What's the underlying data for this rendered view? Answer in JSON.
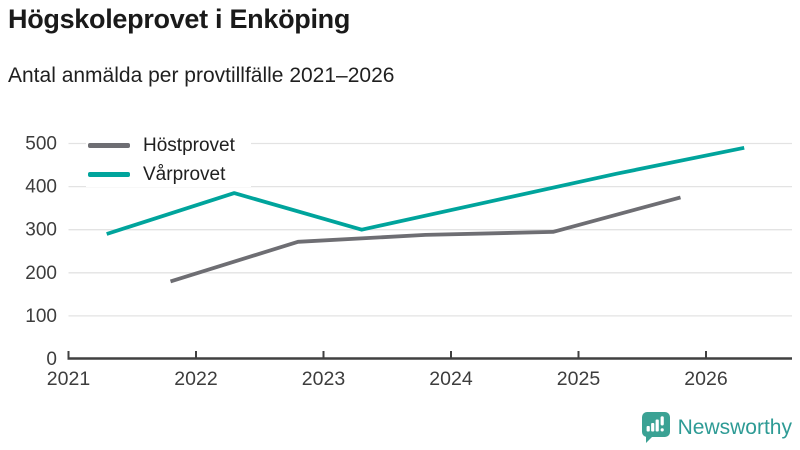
{
  "header": {
    "title": "Högskoleprovet i Enköping",
    "subtitle": "Antal anmälda per provtillfälle 2021–2026"
  },
  "chart_data": {
    "type": "line",
    "title": "Högskoleprovet i Enköping",
    "subtitle": "Antal anmälda per provtillfälle 2021–2026",
    "xlabel": "",
    "ylabel": "",
    "x_ticks": [
      2021,
      2022,
      2023,
      2024,
      2025,
      2026
    ],
    "y_ticks": [
      0,
      100,
      200,
      300,
      400,
      500
    ],
    "xlim": [
      2021,
      2026.67
    ],
    "ylim": [
      0,
      500
    ],
    "grid": true,
    "legend_position": "top-left",
    "series": [
      {
        "name": "Höstprovet",
        "color": "#6e6e73",
        "points": [
          {
            "x": 2021.8,
            "y": 180
          },
          {
            "x": 2022.8,
            "y": 272
          },
          {
            "x": 2023.8,
            "y": 288
          },
          {
            "x": 2024.8,
            "y": 295
          },
          {
            "x": 2025.8,
            "y": 375
          }
        ]
      },
      {
        "name": "Vårprovet",
        "color": "#00a49c",
        "points": [
          {
            "x": 2021.3,
            "y": 290
          },
          {
            "x": 2022.3,
            "y": 385
          },
          {
            "x": 2023.3,
            "y": 300
          },
          {
            "x": 2024.3,
            "y": 365
          },
          {
            "x": 2025.3,
            "y": 430
          },
          {
            "x": 2026.3,
            "y": 490
          }
        ]
      }
    ],
    "axis_color": "#3d3d3d",
    "gridline_color": "#e3e3e3"
  },
  "footer": {
    "brand": "Newsworthy",
    "brand_color": "#2e9b95",
    "logo_color": "#3ba294"
  }
}
